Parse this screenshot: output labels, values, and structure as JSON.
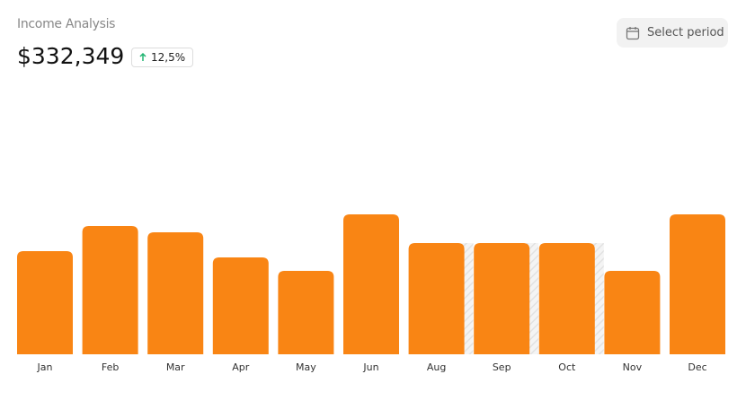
{
  "header": {
    "title": "Income Analysis",
    "total": "$332,349",
    "change": "12,5%"
  },
  "button": {
    "label": "Select period"
  },
  "chart_data": {
    "type": "bar",
    "categories": [
      "Jan",
      "Feb",
      "Mar",
      "Apr",
      "May",
      "Jun",
      "Aug",
      "Sep",
      "Oct",
      "Nov",
      "Dec"
    ],
    "values": [
      115,
      143,
      136,
      108,
      93,
      156,
      124,
      124,
      124,
      93,
      156
    ],
    "hatched": [
      false,
      false,
      false,
      false,
      false,
      false,
      true,
      true,
      true,
      false,
      false
    ],
    "color": "#f98514"
  }
}
